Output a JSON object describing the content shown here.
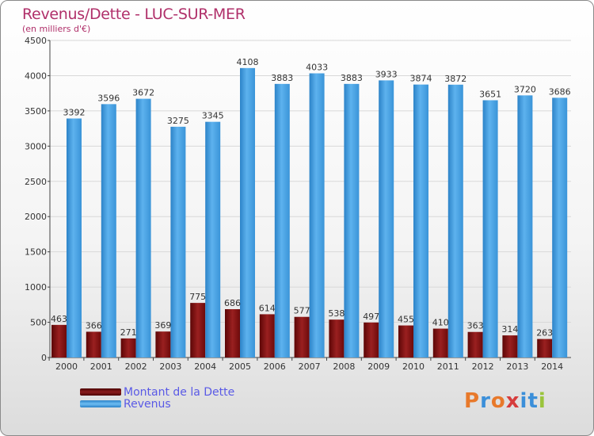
{
  "title": "Revenus/Dette - LUC-SUR-MER",
  "subtitle": "(en milliers d'€)",
  "legend": [
    {
      "label": "Montant de la Dette",
      "color": "#7a0e0e"
    },
    {
      "label": "Revenus",
      "color": "#4aa3e3"
    }
  ],
  "logo": {
    "text": "Proxiti",
    "colors": [
      "#e8792b",
      "#3b8fd9",
      "#e8792b",
      "#d63d3d",
      "#3b8fd9",
      "#3b8fd9",
      "#9ac43c"
    ]
  },
  "chart_data": {
    "type": "bar",
    "categories": [
      "2000",
      "2001",
      "2002",
      "2003",
      "2004",
      "2005",
      "2006",
      "2007",
      "2008",
      "2009",
      "2010",
      "2011",
      "2012",
      "2013",
      "2014"
    ],
    "series": [
      {
        "name": "Montant de la Dette",
        "color": "#7a0e0e",
        "values": [
          463,
          366,
          271,
          369,
          775,
          686,
          614,
          577,
          538,
          497,
          455,
          410,
          363,
          314,
          263
        ]
      },
      {
        "name": "Revenus",
        "color": "#4aa3e3",
        "values": [
          3392,
          3596,
          3672,
          3275,
          3345,
          4108,
          3883,
          4033,
          3883,
          3933,
          3874,
          3872,
          3651,
          3720,
          3686
        ]
      }
    ],
    "ylim": [
      0,
      4500
    ],
    "yticks": [
      0,
      500,
      1000,
      1500,
      2000,
      2500,
      3000,
      3500,
      4000,
      4500
    ],
    "grid": true,
    "xlabel": "",
    "ylabel": ""
  }
}
